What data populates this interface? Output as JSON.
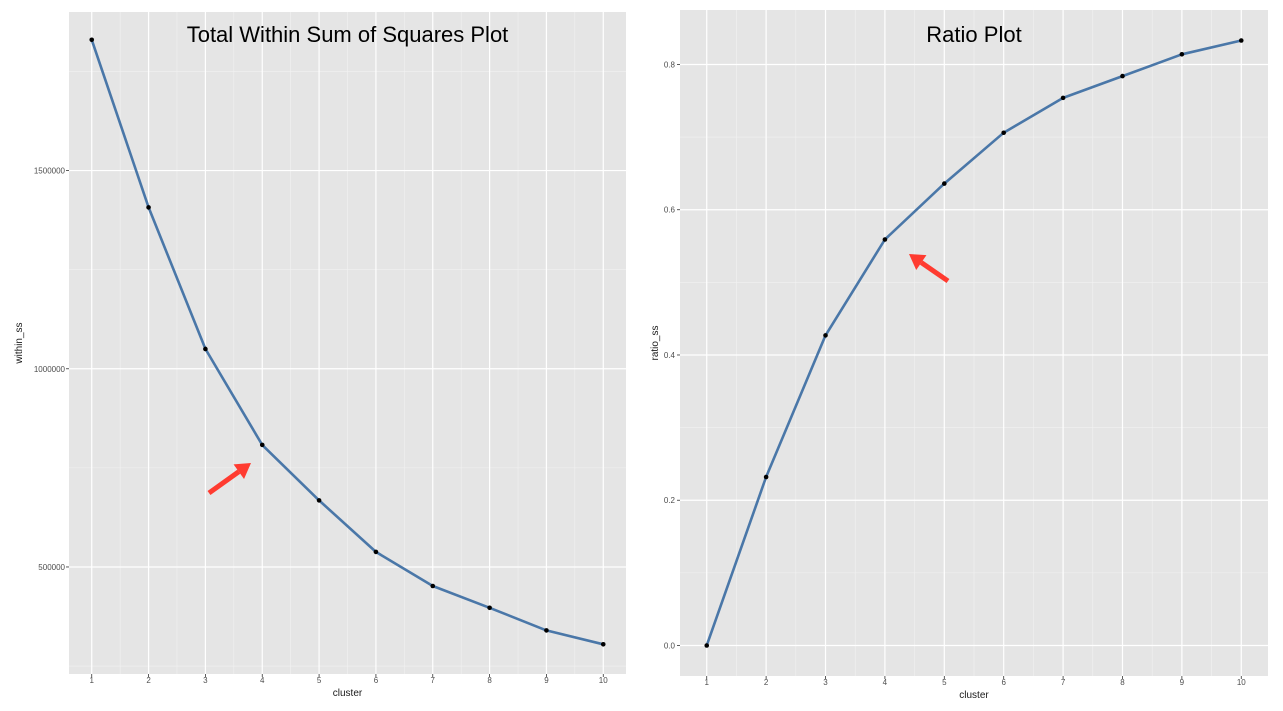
{
  "chart_data": [
    {
      "type": "line",
      "title": "Total Within Sum of Squares Plot",
      "xlabel": "cluster",
      "ylabel": "within_ss",
      "x": [
        1,
        2,
        3,
        4,
        5,
        6,
        7,
        8,
        9,
        10
      ],
      "x_ticks": [
        "1",
        "2",
        "3",
        "4",
        "5",
        "6",
        "7",
        "8",
        "9",
        "10"
      ],
      "series": [
        {
          "values": [
            1830000,
            1407000,
            1050000,
            808000,
            668000,
            538000,
            452000,
            397000,
            340000,
            305000
          ]
        }
      ],
      "y_ticks": [
        500000,
        1000000,
        1500000
      ],
      "y_tick_labels": [
        "500000",
        "1000000",
        "1500000"
      ],
      "xlim": [
        0.6,
        10.4
      ],
      "ylim": [
        230000,
        1900000
      ],
      "annotation": {
        "type": "arrow",
        "points_to_cluster": 4,
        "color": "#ff3b30"
      },
      "line_color": "#4a77a8",
      "panel_color": "#e5e5e5",
      "grid": true
    },
    {
      "type": "line",
      "title": "Ratio Plot",
      "xlabel": "cluster",
      "ylabel": "ratio_ss",
      "x": [
        1,
        2,
        3,
        4,
        5,
        6,
        7,
        8,
        9,
        10
      ],
      "x_ticks": [
        "1",
        "2",
        "3",
        "4",
        "5",
        "6",
        "7",
        "8",
        "9",
        "10"
      ],
      "series": [
        {
          "values": [
            0.0,
            0.232,
            0.427,
            0.559,
            0.636,
            0.706,
            0.754,
            0.784,
            0.814,
            0.833
          ]
        }
      ],
      "y_ticks": [
        0.0,
        0.2,
        0.4,
        0.6,
        0.8
      ],
      "y_tick_labels": [
        "0.0",
        "0.2",
        "0.4",
        "0.6",
        "0.8"
      ],
      "xlim": [
        0.55,
        10.45
      ],
      "ylim": [
        -0.042,
        0.875
      ],
      "annotation": {
        "type": "arrow",
        "points_to_cluster": 4,
        "color": "#ff3b30"
      },
      "line_color": "#4a77a8",
      "panel_color": "#e5e5e5",
      "grid": true
    }
  ]
}
